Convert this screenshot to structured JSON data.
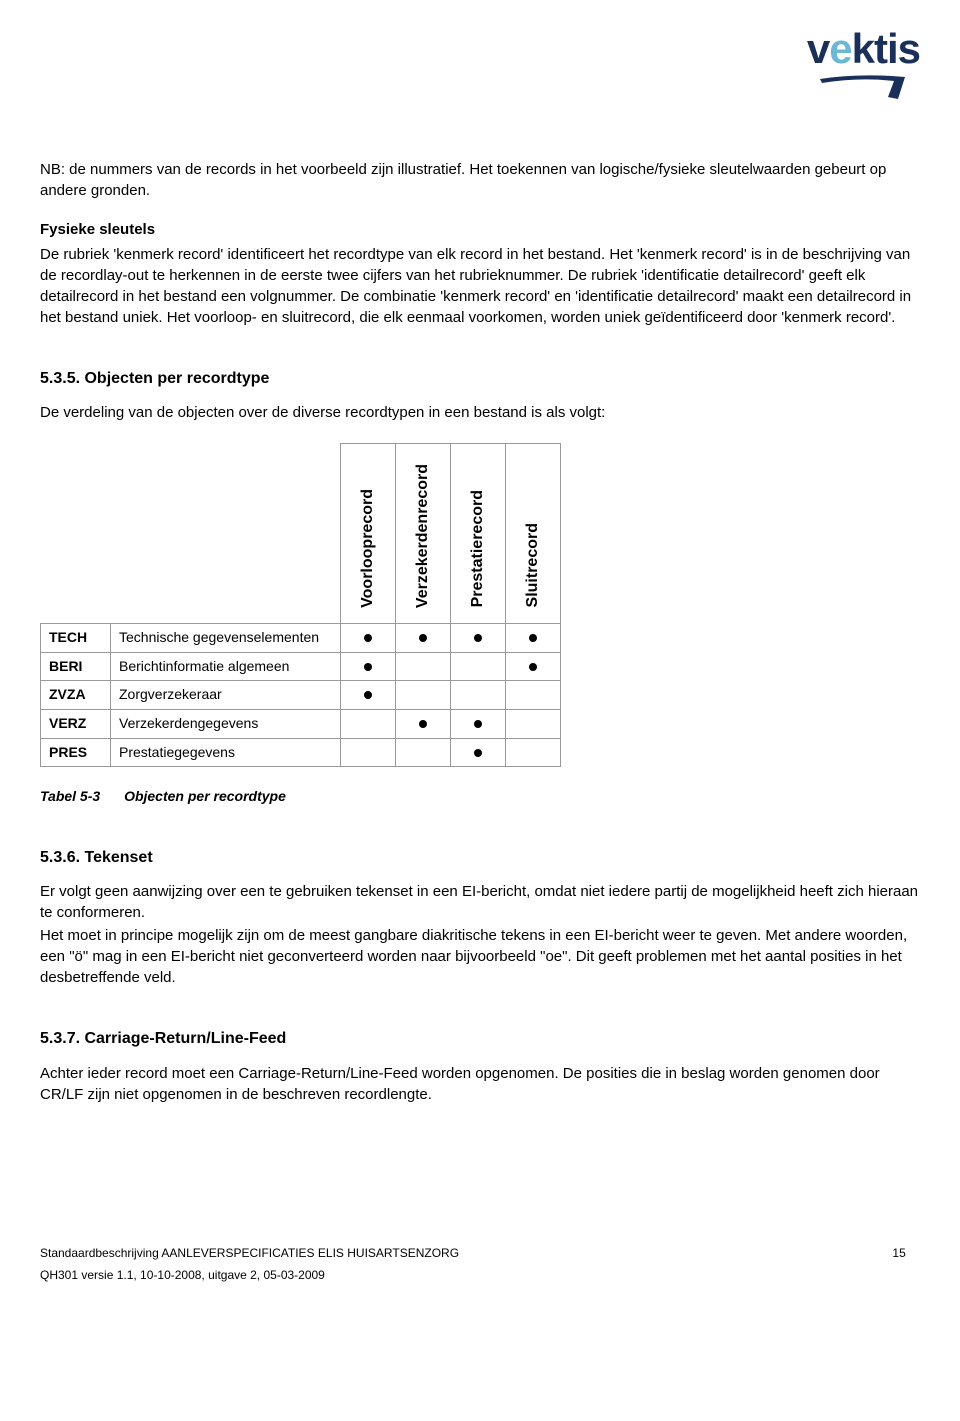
{
  "logo": {
    "text_main": "vektis",
    "accent_index": 1,
    "color_main": "#1a2f5a",
    "color_accent": "#6bb8d6"
  },
  "intro": {
    "nb_text": "NB: de nummers van de records in het voorbeeld zijn illustratief. Het toekennen van logische/fysieke sleutelwaarden gebeurt op andere gronden.",
    "fysieke_heading": "Fysieke sleutels",
    "fysieke_text": "De rubriek 'kenmerk record' identificeert het recordtype van elk record in het bestand. Het 'kenmerk record' is in de beschrijving van de recordlay-out te herkennen in de eerste twee cijfers van het rubrieknummer. De rubriek 'identificatie detailrecord' geeft elk detailrecord in het bestand een volgnummer. De combinatie 'kenmerk record' en 'identificatie detailrecord' maakt een detailrecord in het bestand uniek. Het voorloop- en sluitrecord, die elk eenmaal voorkomen, worden uniek geïdentificeerd door 'kenmerk record'."
  },
  "section_535": {
    "heading": "5.3.5.  Objecten per recordtype",
    "intro": "De verdeling van de objecten over de diverse recordtypen in een bestand is als volgt:",
    "columns": [
      "Voorlooprecord",
      "Verzekerdenrecord",
      "Prestatierecord",
      "Sluitrecord"
    ],
    "rows": [
      {
        "code": "TECH",
        "label": "Technische gegevenselementen",
        "marks": [
          true,
          true,
          true,
          true
        ]
      },
      {
        "code": "BERI",
        "label": "Berichtinformatie algemeen",
        "marks": [
          true,
          false,
          false,
          true
        ]
      },
      {
        "code": "ZVZA",
        "label": "Zorgverzekeraar",
        "marks": [
          true,
          false,
          false,
          false
        ]
      },
      {
        "code": "VERZ",
        "label": "Verzekerdengegevens",
        "marks": [
          false,
          true,
          true,
          false
        ]
      },
      {
        "code": "PRES",
        "label": "Prestatiegegevens",
        "marks": [
          false,
          false,
          true,
          false
        ]
      }
    ],
    "caption_label": "Tabel 5-3",
    "caption_text": "Objecten per recordtype"
  },
  "section_536": {
    "heading": "5.3.6.  Tekenset",
    "p1": "Er volgt geen aanwijzing over een te gebruiken tekenset in een EI-bericht, omdat niet iedere partij de mogelijkheid heeft zich hieraan te conformeren.",
    "p2": "Het moet in principe mogelijk zijn om de meest gangbare diakritische tekens in een EI-bericht weer te geven. Met andere woorden, een \"ö\" mag in een EI-bericht niet geconverteerd worden naar bijvoorbeeld \"oe\". Dit geeft problemen met het aantal posities in het desbetreffende veld."
  },
  "section_537": {
    "heading": "5.3.7.  Carriage-Return/Line-Feed",
    "p1": "Achter ieder record moet een Carriage-Return/Line-Feed worden opgenomen. De posities die in beslag worden genomen door CR/LF zijn niet opgenomen in de beschreven recordlengte."
  },
  "footer": {
    "line1": "Standaardbeschrijving AANLEVERSPECIFICATIES ELIS HUISARTSENZORG",
    "page": "15",
    "line2": "QH301 versie 1.1, 10-10-2008, uitgave 2, 05-03-2009"
  }
}
